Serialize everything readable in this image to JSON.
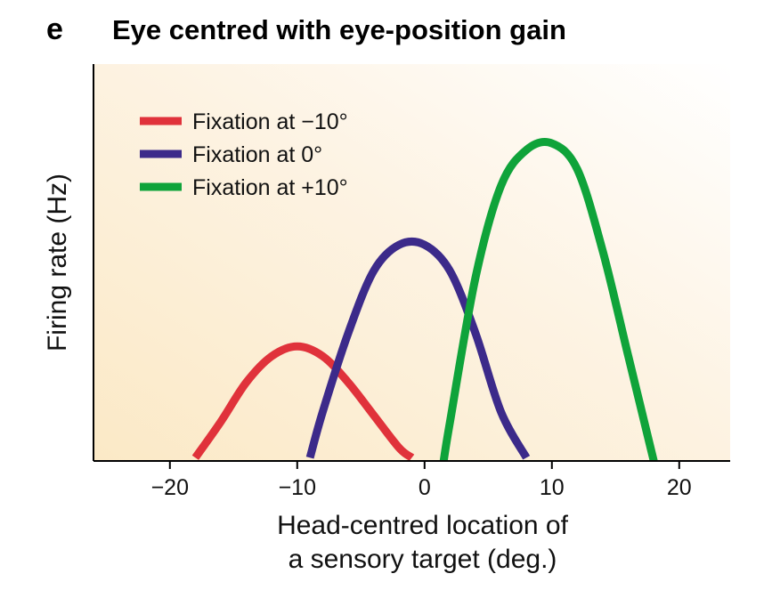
{
  "panel_letter": "e",
  "chart_data": {
    "type": "line",
    "title": "Eye centred with eye-position gain",
    "xlabel": [
      "Head-centred location of",
      "a sensory target (deg.)"
    ],
    "ylabel": "Firing rate (Hz)",
    "xlim": [
      -26,
      24
    ],
    "ylim": [
      0,
      100
    ],
    "xticks": [
      -20,
      -10,
      0,
      10,
      20
    ],
    "xtick_labels": [
      "−20",
      "−10",
      "0",
      "10",
      "20"
    ],
    "grid": false,
    "legend_position": "top-left",
    "background": "gradient warm beige to white",
    "series": [
      {
        "name": "Fixation at  −10°",
        "color": "#e0323b",
        "x": [
          -18,
          -16,
          -14,
          -12,
          -10,
          -8,
          -6,
          -4,
          -2,
          -1
        ],
        "y": [
          1,
          12,
          24,
          32,
          35,
          32,
          24,
          14,
          4,
          1
        ]
      },
      {
        "name": "Fixation at 0°",
        "color": "#3c2a8a",
        "x": [
          -9,
          -8,
          -6,
          -4,
          -2,
          0,
          2,
          4,
          6,
          8
        ],
        "y": [
          1,
          15,
          39,
          58,
          66,
          66,
          58,
          39,
          15,
          1
        ]
      },
      {
        "name": "Fixation at +10°",
        "color": "#0fa33a",
        "x": [
          1.5,
          2,
          4,
          6,
          8,
          10,
          12,
          14,
          16,
          18
        ],
        "y": [
          0,
          12,
          56,
          84,
          95,
          97,
          89,
          64,
          32,
          0
        ]
      }
    ]
  }
}
